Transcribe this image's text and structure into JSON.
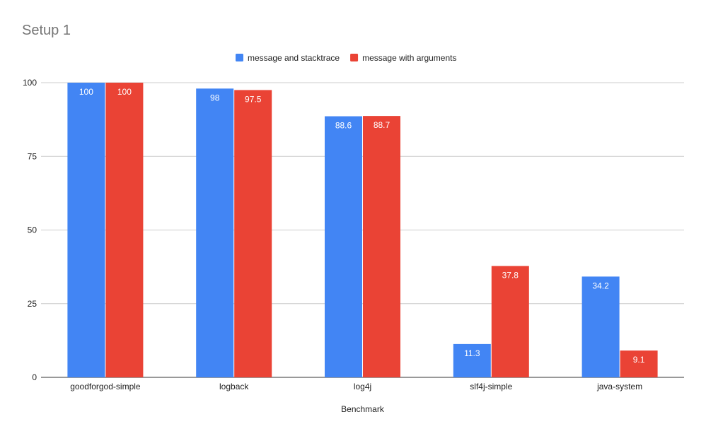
{
  "chart_data": {
    "type": "bar",
    "title": "Setup 1",
    "xlabel": "Benchmark",
    "ylabel": "",
    "ylim": [
      0,
      100
    ],
    "yticks": [
      0,
      25,
      50,
      75,
      100
    ],
    "grid": true,
    "legend_position": "top",
    "categories": [
      "goodforgod-simple",
      "logback",
      "log4j",
      "slf4j-simple",
      "java-system"
    ],
    "series": [
      {
        "name": "message and stacktrace",
        "color": "#4285f4",
        "values": [
          100,
          98,
          88.6,
          11.3,
          34.2
        ]
      },
      {
        "name": "message with arguments",
        "color": "#ea4335",
        "values": [
          100,
          97.5,
          88.7,
          37.8,
          9.1
        ]
      }
    ]
  }
}
